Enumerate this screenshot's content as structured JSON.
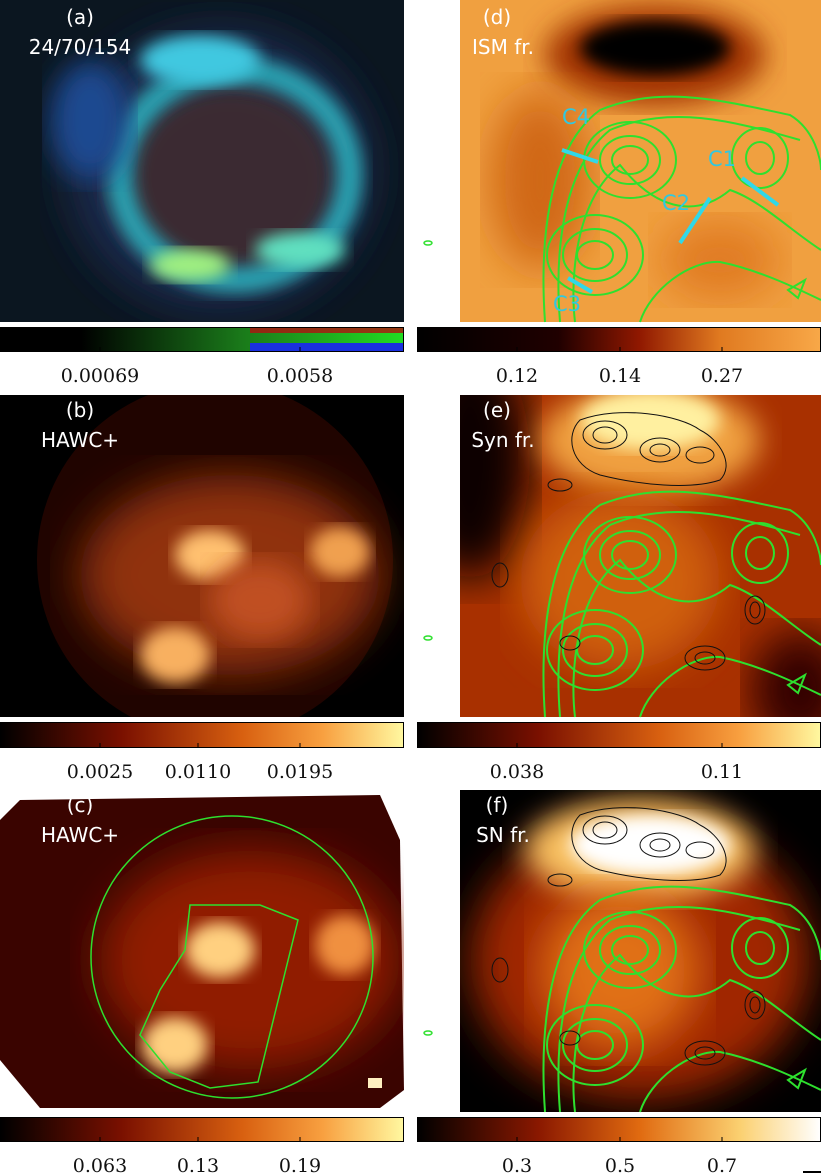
{
  "panels": [
    {
      "label": "(a)",
      "caption": "24/70/154",
      "colorbar_ticks": [
        "0.00069",
        "0.0058"
      ]
    },
    {
      "label": "(b)",
      "caption": "HAWC+",
      "colorbar_ticks": [
        "0.0025",
        "0.0110",
        "0.0195"
      ]
    },
    {
      "label": "(c)",
      "caption": "HAWC+",
      "colorbar_ticks": [
        "0.063",
        "0.13",
        "0.19"
      ]
    },
    {
      "label": "(d)",
      "caption": "ISM fr.",
      "colorbar_ticks": [
        "0.12",
        "0.14",
        "0.27"
      ],
      "contour_labels": [
        "C1",
        "C2",
        "C3",
        "C4"
      ]
    },
    {
      "label": "(e)",
      "caption": "Syn fr.",
      "colorbar_ticks": [
        "0.038",
        "0.11"
      ]
    },
    {
      "label": "(f)",
      "caption": "SN fr.",
      "colorbar_ticks": [
        "0.3",
        "0.5",
        "0.7"
      ]
    }
  ]
}
